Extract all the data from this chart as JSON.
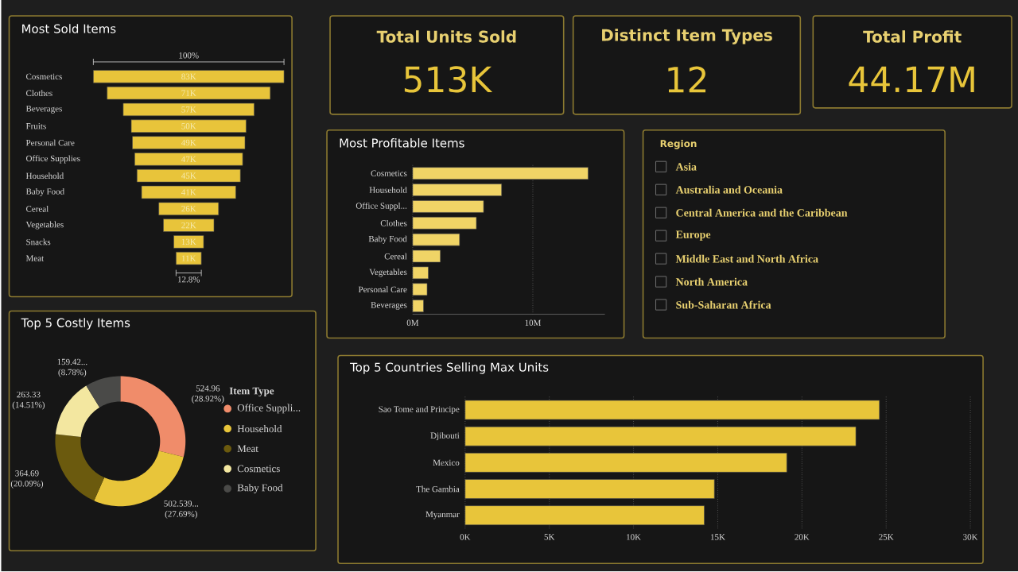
{
  "chart_data": [
    {
      "type": "other",
      "title": "Most Sold Items",
      "categories": [
        "Cosmetics",
        "Clothes",
        "Beverages",
        "Fruits",
        "Personal Care",
        "Office Supplies",
        "Household",
        "Baby Food",
        "Cereal",
        "Vegetables",
        "Snacks",
        "Meat"
      ],
      "values": [
        83,
        71,
        57,
        50,
        49,
        47,
        45,
        41,
        26,
        22,
        13,
        11
      ],
      "value_labels": [
        "83K",
        "71K",
        "57K",
        "50K",
        "49K",
        "47K",
        "45K",
        "41K",
        "26K",
        "22K",
        "13K",
        "11K"
      ],
      "annotations": [
        "100%",
        "12.8%"
      ],
      "color": "#e8c43a"
    },
    {
      "type": "other",
      "title": "Total Units Sold",
      "annotations": [
        "513K"
      ]
    },
    {
      "type": "other",
      "title": "Distinct Item Types",
      "annotations": [
        "12"
      ]
    },
    {
      "type": "other",
      "title": "Total Profit",
      "annotations": [
        "44.17M"
      ]
    },
    {
      "type": "bar",
      "orientation": "horizontal",
      "title": "Most Profitable Items",
      "categories": [
        "Cosmetics",
        "Household",
        "Office Suppl...",
        "Clothes",
        "Baby Food",
        "Cereal",
        "Vegetables",
        "Personal Care",
        "Beverages"
      ],
      "values": [
        14.6,
        7.4,
        5.9,
        5.3,
        3.9,
        2.3,
        1.3,
        1.2,
        0.9
      ],
      "color": "#f0d466",
      "xlim": [
        0,
        16
      ],
      "xticks": [
        {
          "value": 0,
          "label": "0M"
        },
        {
          "value": 10,
          "label": "10M"
        }
      ],
      "grid": "x"
    },
    {
      "type": "other",
      "title": "Region",
      "annotations": [
        "Asia",
        "Australia and Oceania",
        "Central America and the Caribbean",
        "Europe",
        "Middle East and North Africa",
        "North America",
        "Sub-Saharan Africa"
      ]
    },
    {
      "type": "donut",
      "title": "Top 5 Costly Items",
      "categories": [
        "Office Suppli...",
        "Household",
        "Meat",
        "Cosmetics",
        "Baby Food"
      ],
      "values": [
        524.96,
        502.539,
        364.69,
        263.33,
        159.42
      ],
      "colors": [
        "#f08c6a",
        "#e8c53a",
        "#6b5a0e",
        "#f3e7a0",
        "#4a4a48"
      ],
      "value_labels": [
        "524.96 (28.92%)",
        "502.539... (27.69%)",
        "364.69 (20.09%)",
        "263.33 (14.51%)",
        "159.42... (8.78%)"
      ],
      "legend_title": "Item Type",
      "legend": "right"
    },
    {
      "type": "bar",
      "orientation": "horizontal",
      "title": "Top 5 Countries Selling Max Units",
      "categories": [
        "Sao Tome and Principe",
        "Djibouti",
        "Mexico",
        "The Gambia",
        "Myanmar"
      ],
      "values": [
        24.6,
        23.2,
        19.1,
        14.8,
        14.2
      ],
      "color": "#e8c53a",
      "xlim": [
        0,
        30
      ],
      "xticks": [
        {
          "value": 0,
          "label": "0K"
        },
        {
          "value": 5,
          "label": "5K"
        },
        {
          "value": 10,
          "label": "10K"
        },
        {
          "value": 15,
          "label": "15K"
        },
        {
          "value": 20,
          "label": "20K"
        },
        {
          "value": 25,
          "label": "25K"
        },
        {
          "value": 30,
          "label": "30K"
        }
      ],
      "grid": "x"
    }
  ]
}
